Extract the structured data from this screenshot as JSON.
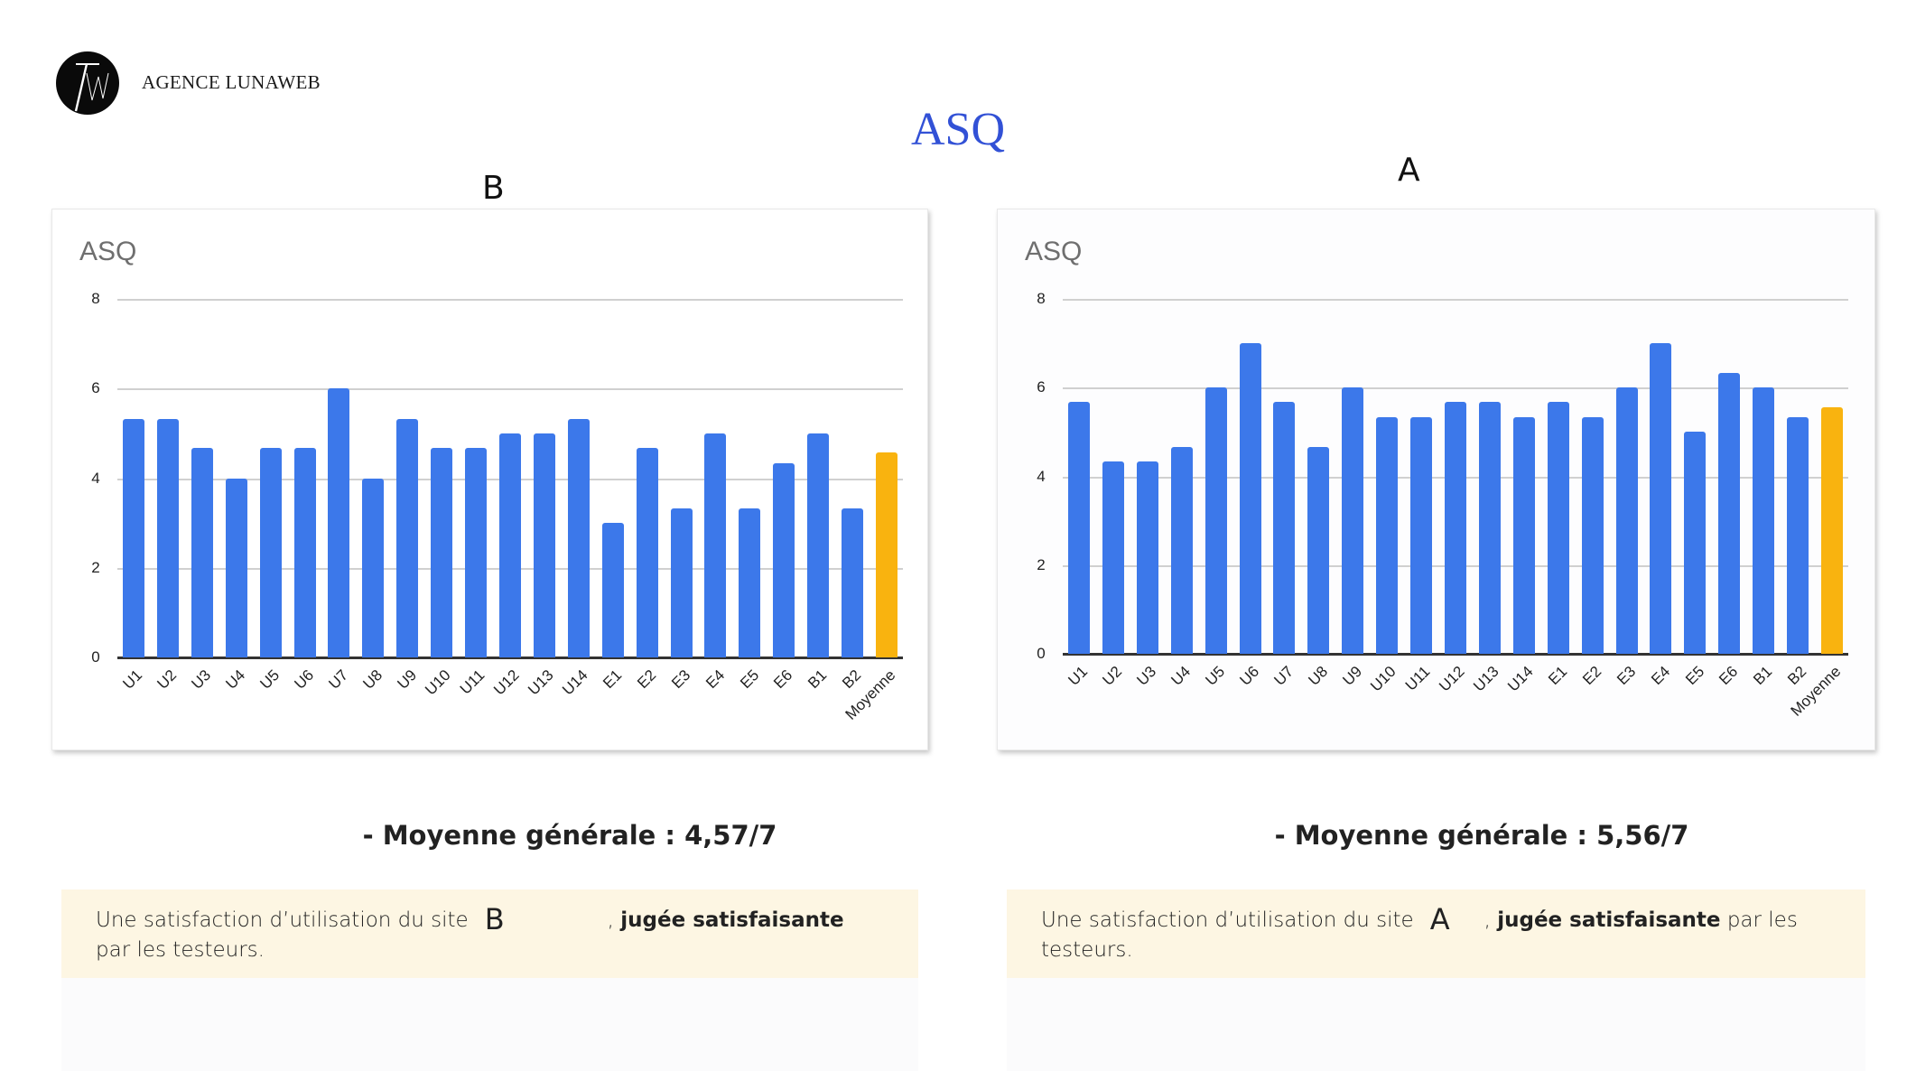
{
  "header": {
    "logo_text": "LW",
    "brand": "AGENCE LUNAWEB",
    "title": "ASQ"
  },
  "colors": {
    "title_blue": "#3251d6",
    "bar_blue": "#3c78ea",
    "bar_average": "#f9b30f",
    "note_background": "#fdf6e3"
  },
  "panels": [
    {
      "site_label": "B",
      "chart_title": "ASQ",
      "summary": "- Moyenne générale : 4,57/7",
      "note": {
        "prefix": "Une satisfaction d’utilisation du site",
        "site": "B",
        "comma": ",",
        "bold": "jugée satisfaisante",
        "suffix": "par les testeurs."
      }
    },
    {
      "site_label": "A",
      "chart_title": "ASQ",
      "summary": "- Moyenne générale : 5,56/7",
      "note": {
        "prefix": "Une satisfaction d’utilisation du site",
        "site": "A",
        "comma": ",",
        "bold": "jugée satisfaisante",
        "suffix": "par les testeurs."
      }
    }
  ],
  "chart_data": [
    {
      "type": "bar",
      "title": "ASQ",
      "panel_label": "B",
      "xlabel": "",
      "ylabel": "",
      "ylim": [
        0,
        8
      ],
      "yticks": [
        0,
        2,
        4,
        6,
        8
      ],
      "grid": true,
      "legend": "none",
      "categories": [
        "U1",
        "U2",
        "U3",
        "U4",
        "U5",
        "U6",
        "U7",
        "U8",
        "U9",
        "U10",
        "U11",
        "U12",
        "U13",
        "U14",
        "E1",
        "E2",
        "E3",
        "E4",
        "E5",
        "E6",
        "B1",
        "B2",
        "Moyenne"
      ],
      "values": [
        5.33,
        5.33,
        4.67,
        4,
        4.67,
        4.67,
        6,
        4,
        5.33,
        4.67,
        4.67,
        5,
        5,
        5.33,
        3,
        4.67,
        3.33,
        5,
        3.33,
        4.33,
        5,
        3.33,
        4.57
      ],
      "highlight_index": 22
    },
    {
      "type": "bar",
      "title": "ASQ",
      "panel_label": "A",
      "xlabel": "",
      "ylabel": "",
      "ylim": [
        0,
        8
      ],
      "yticks": [
        0,
        2,
        4,
        6,
        8
      ],
      "grid": true,
      "legend": "none",
      "categories": [
        "U1",
        "U2",
        "U3",
        "U4",
        "U5",
        "U6",
        "U7",
        "U8",
        "U9",
        "U10",
        "U11",
        "U12",
        "U13",
        "U14",
        "E1",
        "E2",
        "E3",
        "E4",
        "E5",
        "E6",
        "B1",
        "B2",
        "Moyenne"
      ],
      "values": [
        5.67,
        4.33,
        4.33,
        4.67,
        6,
        7,
        5.67,
        4.67,
        6,
        5.33,
        5.33,
        5.67,
        5.67,
        5.33,
        5.67,
        5.33,
        6,
        7,
        5,
        6.33,
        6,
        5.33,
        5.56
      ],
      "highlight_index": 22
    }
  ]
}
